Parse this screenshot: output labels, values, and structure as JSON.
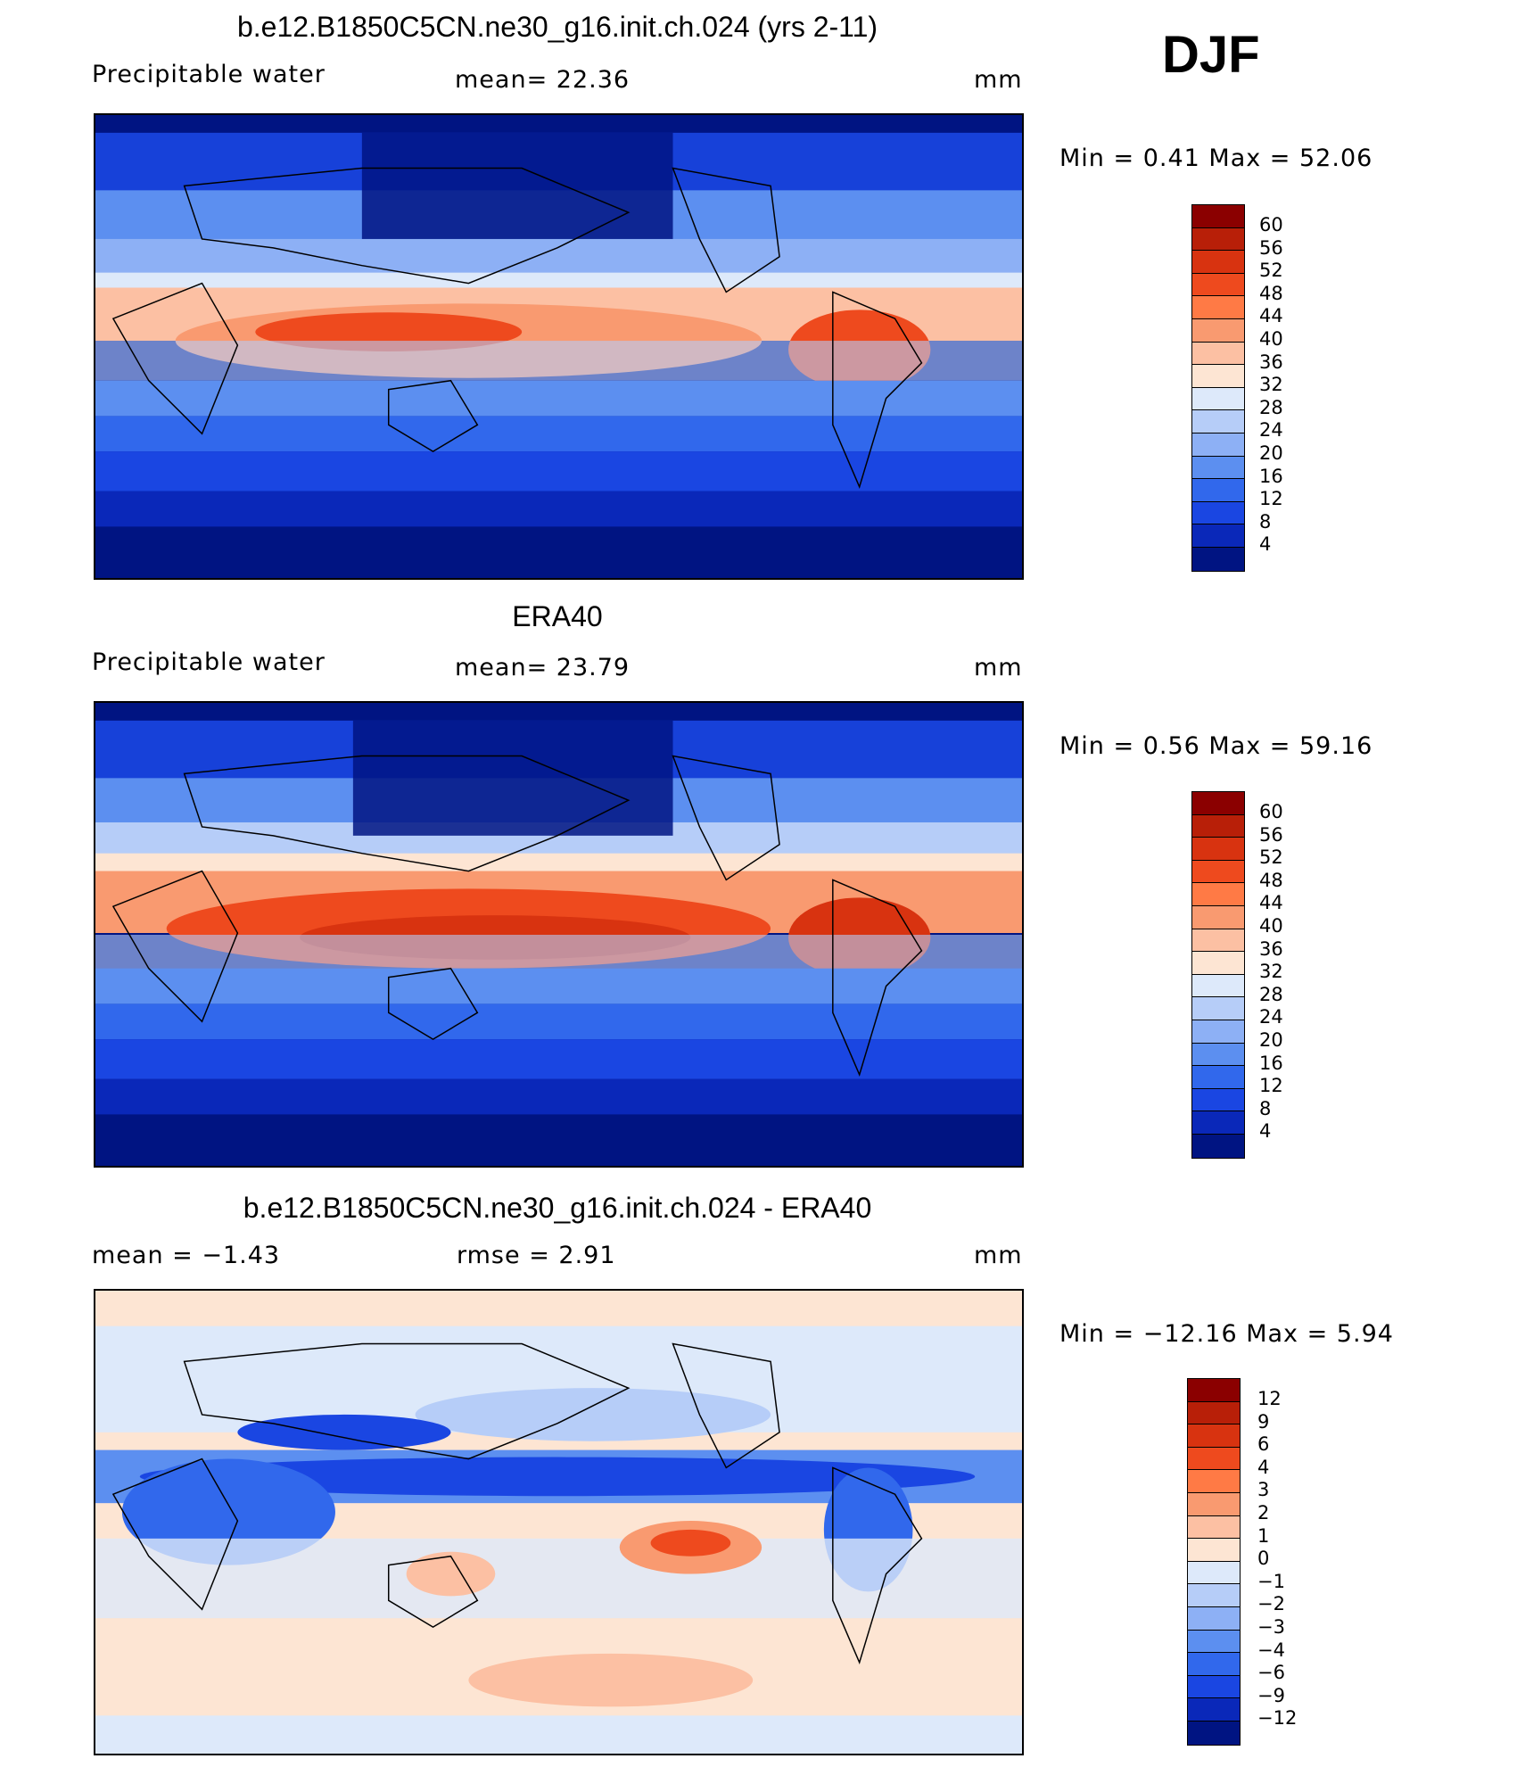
{
  "season": "DJF",
  "panels": [
    {
      "title": "b.e12.B1850C5CN.ne30_g16.init.ch.024 (yrs 2-11)",
      "left_label": "Precipitable  water",
      "center_label": "mean=   22.36",
      "units": "mm",
      "minmax": "Min  =     0.41  Max  =    52.06",
      "colorbar_labels": [
        "60",
        "56",
        "52",
        "48",
        "44",
        "40",
        "36",
        "32",
        "28",
        "24",
        "20",
        "16",
        "12",
        "8",
        "4"
      ]
    },
    {
      "title": "ERA40",
      "left_label": "Precipitable  water",
      "center_label": "mean=   23.79",
      "units": "mm",
      "minmax": "Min  =     0.56  Max  =    59.16",
      "colorbar_labels": [
        "60",
        "56",
        "52",
        "48",
        "44",
        "40",
        "36",
        "32",
        "28",
        "24",
        "20",
        "16",
        "12",
        "8",
        "4"
      ]
    },
    {
      "title": "b.e12.B1850C5CN.ne30_g16.init.ch.024 - ERA40",
      "left_label": "mean  =    −1.43",
      "center_label": "rmse  =     2.91",
      "units": "mm",
      "minmax": "Min  =  −12.16  Max  =     5.94",
      "colorbar_labels": [
        "12",
        "9",
        "6",
        "4",
        "3",
        "2",
        "1",
        "0",
        "−1",
        "−2",
        "−3",
        "−4",
        "−6",
        "−9",
        "−12"
      ]
    }
  ],
  "colors": {
    "sequential": [
      "#8b0000",
      "#b81f08",
      "#d83310",
      "#ee4a1e",
      "#ff7a45",
      "#f99a70",
      "#fcc0a3",
      "#fde5d3",
      "#dde9fa",
      "#b6cdf8",
      "#8db0f5",
      "#5c8ff0",
      "#3168ec",
      "#1a46e2",
      "#0a28b9",
      "#001482"
    ],
    "diverging": [
      "#8b0000",
      "#b81f08",
      "#d83310",
      "#ee4a1e",
      "#ff7a45",
      "#f99a70",
      "#fcc0a3",
      "#fde5d3",
      "#dde9fa",
      "#b6cdf8",
      "#8db0f5",
      "#5c8ff0",
      "#3168ec",
      "#1a46e2",
      "#0a28b9",
      "#001482"
    ]
  }
}
